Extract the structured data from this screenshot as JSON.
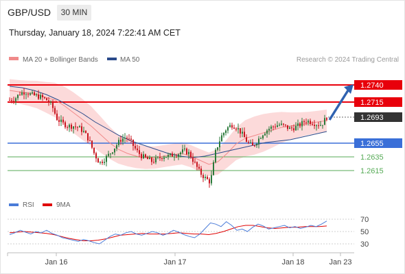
{
  "header": {
    "symbol": "GBP/USD",
    "timeframe": "30 MIN",
    "datetime": "Thursday, January 18, 2024 7:22:41 AM CET"
  },
  "legend": {
    "ma20": "MA 20 + Bollinger Bands",
    "ma50": "MA 50",
    "credit": "Research © 2024 Trading Central",
    "rsi": "RSI",
    "rsi_ma": "9MA"
  },
  "colors": {
    "resistance": "#e8000b",
    "support": "#3a6fd8",
    "minor_support": "#55aa55",
    "bands": "#fbd3d3",
    "ma20": "#f08a8a",
    "ma50": "#2a4a8a",
    "arrow": "#2f62b0",
    "candle_up": "#2a7a3a",
    "candle_down": "#c8141e",
    "last_price": "#333333",
    "rsi": "#4a7bd8",
    "rsi_ma": "#e00000"
  },
  "chart_data": {
    "type": "candlestick",
    "instrument": "GBP/USD",
    "interval": "30 MIN",
    "x_ticks": [
      "Jan 16",
      "Jan 17",
      "Jan 18",
      "Jan 23"
    ],
    "y_visible_range": [
      1.258,
      1.276
    ],
    "levels": [
      {
        "label": "1.2740",
        "value": 1.274,
        "kind": "resistance"
      },
      {
        "label": "1.2715",
        "value": 1.2715,
        "kind": "resistance"
      },
      {
        "label": "1.2693",
        "value": 1.2693,
        "kind": "last"
      },
      {
        "label": "1.2655",
        "value": 1.2655,
        "kind": "support"
      },
      {
        "label": "1.2635",
        "value": 1.2635,
        "kind": "minor"
      },
      {
        "label": "1.2615",
        "value": 1.2615,
        "kind": "minor"
      }
    ],
    "price_path": [
      1.2718,
      1.272,
      1.2728,
      1.273,
      1.2726,
      1.2724,
      1.2722,
      1.2718,
      1.271,
      1.269,
      1.2684,
      1.268,
      1.268,
      1.2678,
      1.2672,
      1.266,
      1.264,
      1.2626,
      1.2632,
      1.264,
      1.265,
      1.266,
      1.2664,
      1.2656,
      1.2644,
      1.2636,
      1.2632,
      1.2628,
      1.2632,
      1.2636,
      1.2636,
      1.2638,
      1.264,
      1.2644,
      1.264,
      1.2626,
      1.2612,
      1.2604,
      1.2598,
      1.2644,
      1.2664,
      1.2676,
      1.2682,
      1.2678,
      1.2668,
      1.2656,
      1.265,
      1.266,
      1.267,
      1.2676,
      1.268,
      1.2682,
      1.268,
      1.2676,
      1.2678,
      1.2682,
      1.2688,
      1.2686,
      1.2683,
      1.2682,
      1.2693
    ],
    "ma20": [
      1.2732,
      1.273,
      1.2728,
      1.2726,
      1.2722,
      1.2718,
      1.271,
      1.27,
      1.269,
      1.268,
      1.2668,
      1.2656,
      1.2646,
      1.264,
      1.2636,
      1.2634,
      1.2634,
      1.2636,
      1.2638,
      1.264,
      1.2636,
      1.263,
      1.2624,
      1.2628,
      1.264,
      1.2654,
      1.2662,
      1.2666,
      1.267,
      1.2674,
      1.2678,
      1.268,
      1.2682,
      1.2684,
      1.2686,
      1.2688
    ],
    "ma50": [
      1.2738,
      1.2736,
      1.2732,
      1.2726,
      1.2718,
      1.2708,
      1.2698,
      1.2686,
      1.2676,
      1.2666,
      1.2658,
      1.2652,
      1.2646,
      1.264,
      1.2636,
      1.2634,
      1.2636,
      1.264,
      1.2644,
      1.2648,
      1.2652,
      1.2656,
      1.2658,
      1.266,
      1.2664,
      1.2668,
      1.2672
    ],
    "forecast_arrow": {
      "from": 1.2689,
      "to": 1.274
    },
    "rsi": {
      "y_ticks": [
        70,
        50,
        30
      ],
      "y_range": [
        20,
        80
      ],
      "rsi_values": [
        45,
        48,
        52,
        49,
        46,
        50,
        48,
        52,
        47,
        44,
        40,
        38,
        36,
        34,
        37,
        35,
        32,
        30,
        36,
        42,
        46,
        44,
        48,
        50,
        46,
        44,
        47,
        50,
        48,
        44,
        47,
        52,
        49,
        45,
        42,
        40,
        46,
        55,
        64,
        62,
        58,
        66,
        60,
        52,
        54,
        50,
        57,
        62,
        59,
        54,
        56,
        58,
        60,
        56,
        58,
        55,
        57,
        60,
        58,
        62,
        67
      ],
      "ma_values": [
        48,
        49,
        50,
        49,
        48,
        47,
        45,
        42,
        39,
        37,
        35,
        35,
        36,
        38,
        41,
        44,
        45,
        46,
        47,
        46,
        46,
        46,
        47,
        48,
        47,
        46,
        46,
        45,
        47,
        50,
        54,
        58,
        60,
        60,
        58,
        56,
        55,
        56,
        57,
        57,
        58,
        58,
        58,
        59
      ]
    }
  }
}
